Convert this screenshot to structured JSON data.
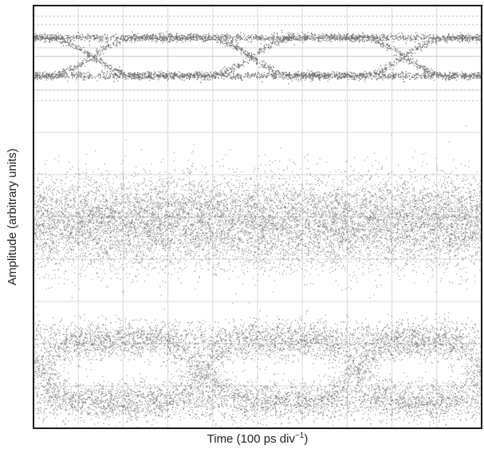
{
  "chart_data": {
    "type": "scatter",
    "title": "",
    "xlabel": "Time (100 ps div",
    "xlabel_sup": "−1",
    "xlabel_close": ")",
    "ylabel": "Amplitude (arbitrary units)",
    "grid": true,
    "grid_divisions_x": 10,
    "grid_divisions_y": 10,
    "xlim": [
      0,
      10
    ],
    "ylim": [
      0,
      10
    ],
    "x_unit_per_div_ps": 100,
    "colors": {
      "trace": "#6e6e6e",
      "grid": "#d9d9d9",
      "frame": "#1a1a1a",
      "faint_bands": "#c8c8c8"
    },
    "panels": [
      {
        "name": "top",
        "kind": "eye_diagram_clean",
        "y_range": [
          7.6,
          10.0
        ],
        "center_level": 8.8,
        "rail_high": 9.25,
        "rail_low": 8.35,
        "eye_crossings_x": [
          1.3,
          4.85,
          8.25
        ],
        "faint_level_lines": [
          9.75,
          9.55,
          8.0,
          7.75
        ]
      },
      {
        "name": "middle",
        "kind": "noise_band",
        "y_range": [
          3.3,
          6.6
        ],
        "center_level": 4.9,
        "spread": 0.55
      },
      {
        "name": "bottom",
        "kind": "eye_diagram_noisy",
        "y_range": [
          0.2,
          3.0
        ],
        "rail_high": 2.1,
        "rail_low": 0.65,
        "eye_crossings_x": [
          0.15,
          3.75,
          7.2,
          10.0
        ]
      }
    ]
  }
}
